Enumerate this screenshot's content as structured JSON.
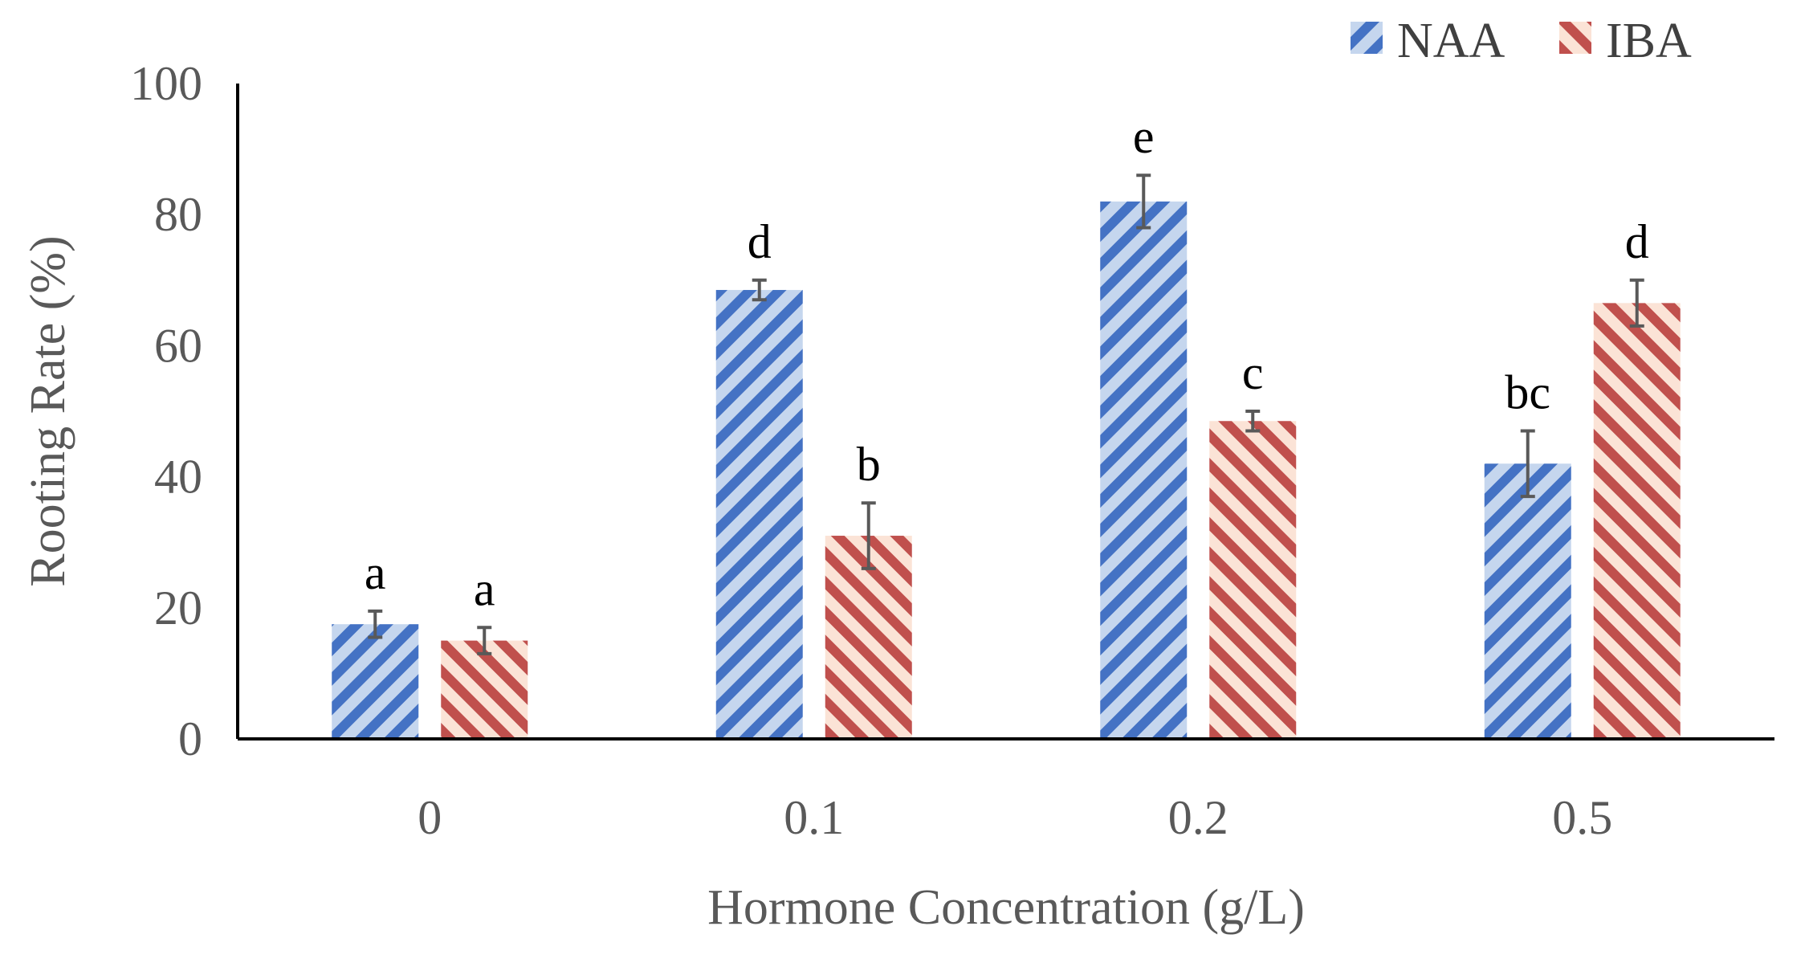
{
  "chart_data": {
    "type": "bar",
    "categories": [
      "0",
      "0.1",
      "0.2",
      "0.5"
    ],
    "series": [
      {
        "name": "NAA",
        "values": [
          17.5,
          68.5,
          82,
          42
        ],
        "errors": [
          2,
          1.5,
          4,
          5
        ],
        "labels": [
          "a",
          "d",
          "e",
          "bc"
        ],
        "color": "#4472C4",
        "fill_light": "#C5D6EE"
      },
      {
        "name": "IBA",
        "values": [
          15,
          31,
          48.5,
          66.5
        ],
        "errors": [
          2,
          5,
          1.5,
          3.5
        ],
        "labels": [
          "a",
          "b",
          "c",
          "d"
        ],
        "color": "#C0504D",
        "fill_light": "#FBE3D6"
      }
    ],
    "ylim": [
      0,
      100
    ],
    "yticks": [
      "0",
      "20",
      "40",
      "60",
      "80",
      "100"
    ],
    "xlabel": "Hormone Concentration (g/L)",
    "ylabel": "Rooting Rate (%)",
    "legend_position": "top-right",
    "error_bar_color": "#595959"
  }
}
